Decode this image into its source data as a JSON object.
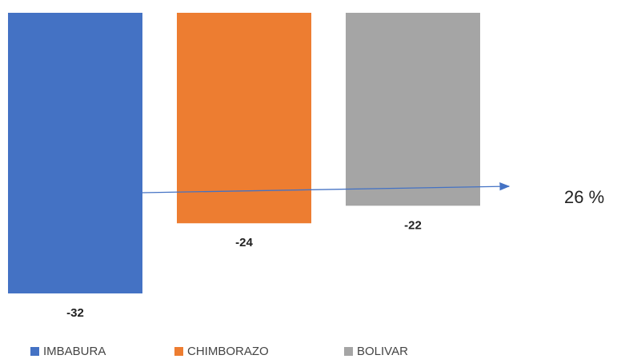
{
  "chart_data": {
    "type": "bar",
    "series": [
      {
        "name": "IMBABURA",
        "color": "#4472c4",
        "values": [
          -32
        ]
      },
      {
        "name": "CHIMBORAZO",
        "color": "#ed7d31",
        "values": [
          -24
        ]
      },
      {
        "name": "BOLIVAR",
        "color": "#a5a5a5",
        "values": [
          -22
        ]
      }
    ],
    "ylim": [
      -32,
      0
    ],
    "annotation": "26 %"
  }
}
